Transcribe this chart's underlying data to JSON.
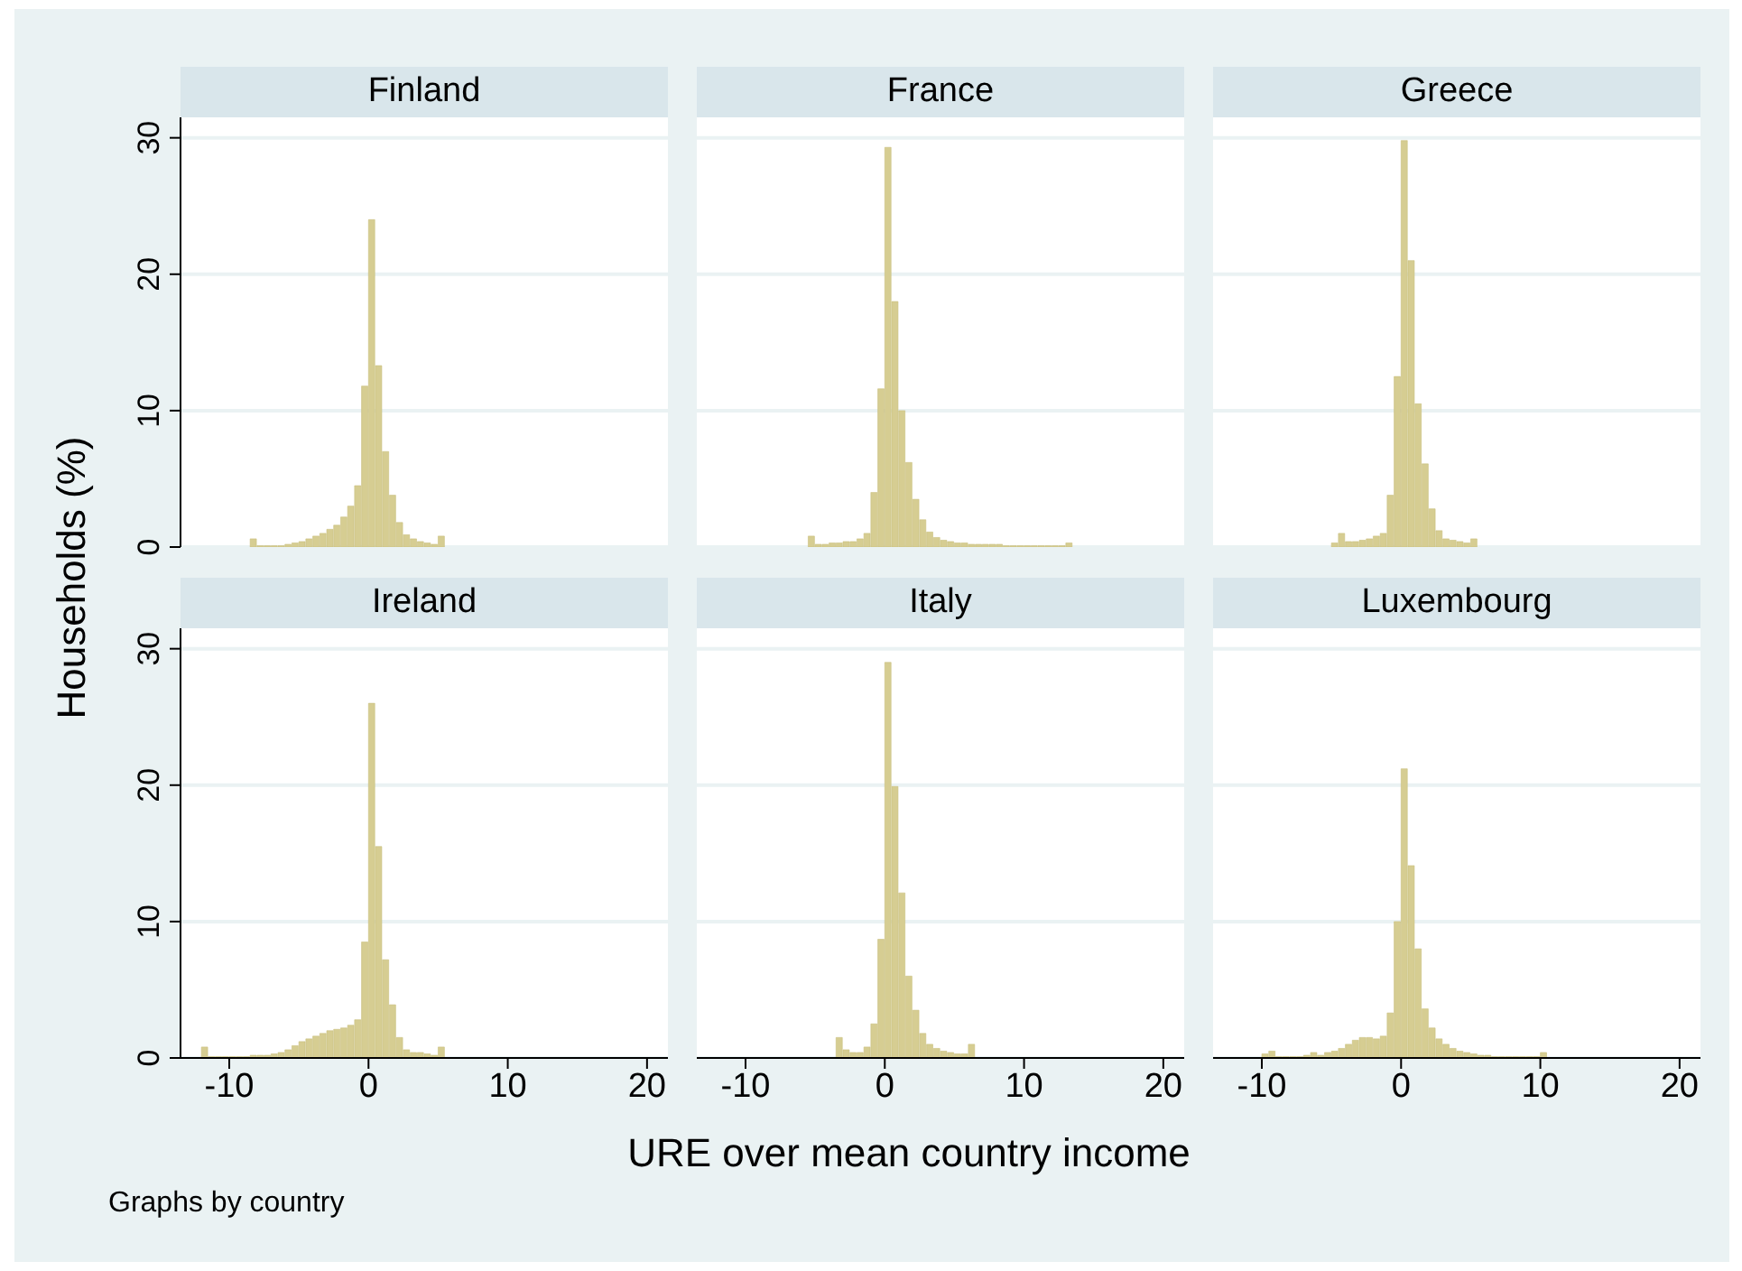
{
  "chart_data": [
    {
      "type": "histogram",
      "title": "Finland",
      "ylabel": "Households (%)",
      "color": "#d6cd92",
      "xlim": [
        -13.5,
        21.5
      ],
      "xticks": [
        -10,
        0,
        10,
        20
      ],
      "ylim": [
        0,
        31.5
      ],
      "yticks": [
        0,
        10,
        20,
        30
      ],
      "grid": "y",
      "tick_labels": "y",
      "bins": [
        -8.5,
        -8,
        -7.5,
        -7,
        -6.5,
        -6,
        -5.5,
        -5,
        -4.5,
        -4,
        -3.5,
        -3,
        -2.5,
        -2,
        -1.5,
        -1,
        -0.5,
        0,
        0.5,
        1,
        1.5,
        2,
        2.5,
        3,
        3.5,
        4,
        4.5,
        5,
        5.5
      ],
      "values": [
        0.6,
        0.1,
        0.1,
        0.1,
        0.1,
        0.2,
        0.3,
        0.4,
        0.6,
        0.8,
        1.0,
        1.3,
        1.6,
        2.2,
        3.0,
        4.5,
        11.8,
        24,
        13.3,
        7.0,
        3.8,
        1.8,
        0.9,
        0.6,
        0.4,
        0.3,
        0.2,
        0.8
      ]
    },
    {
      "type": "histogram",
      "title": "France",
      "color": "#d6cd92",
      "xlim": [
        -13.5,
        21.5
      ],
      "xticks": [
        -10,
        0,
        10,
        20
      ],
      "ylim": [
        0,
        31.5
      ],
      "yticks": [
        0,
        10,
        20,
        30
      ],
      "grid": "y",
      "tick_labels": false,
      "bins": [
        -5.5,
        -5,
        -4.5,
        -4,
        -3.5,
        -3,
        -2.5,
        -2,
        -1.5,
        -1,
        -0.5,
        0,
        0.5,
        1,
        1.5,
        2,
        2.5,
        3,
        3.5,
        4,
        4.5,
        5,
        5.5,
        6,
        6.5,
        7,
        7.5,
        8,
        8.5,
        9,
        9.5,
        10,
        10.5,
        11,
        11.5,
        12,
        12.5,
        13,
        13.5
      ],
      "values": [
        0.8,
        0.2,
        0.2,
        0.3,
        0.3,
        0.4,
        0.4,
        0.6,
        1.0,
        4.0,
        11.6,
        29.3,
        18,
        10,
        6.2,
        3.5,
        2.0,
        1.1,
        0.7,
        0.5,
        0.4,
        0.3,
        0.3,
        0.2,
        0.2,
        0.2,
        0.2,
        0.2,
        0.1,
        0.1,
        0.1,
        0.1,
        0.1,
        0.1,
        0.1,
        0.1,
        0.1,
        0.3
      ]
    },
    {
      "type": "histogram",
      "title": "Greece",
      "color": "#d6cd92",
      "xlim": [
        -13.5,
        21.5
      ],
      "xticks": [
        -10,
        0,
        10,
        20
      ],
      "ylim": [
        0,
        31.5
      ],
      "yticks": [
        0,
        10,
        20,
        30
      ],
      "grid": "y",
      "tick_labels": false,
      "bins": [
        -5,
        -4.5,
        -4,
        -3.5,
        -3,
        -2.5,
        -2,
        -1.5,
        -1,
        -0.5,
        0,
        0.5,
        1,
        1.5,
        2,
        2.5,
        3,
        3.5,
        4,
        4.5,
        5,
        5.5
      ],
      "values": [
        0.3,
        1.0,
        0.4,
        0.4,
        0.5,
        0.6,
        0.8,
        1.0,
        3.8,
        12.5,
        29.8,
        21,
        10.5,
        6.1,
        2.8,
        1.2,
        0.6,
        0.5,
        0.4,
        0.3,
        0.6
      ]
    },
    {
      "type": "histogram",
      "title": "Ireland",
      "annotations": [
        "Graphs by country"
      ],
      "color": "#d6cd92",
      "xlim": [
        -13.5,
        21.5
      ],
      "xticks": [
        -10,
        0,
        10,
        20
      ],
      "ylim": [
        0,
        31.5
      ],
      "yticks": [
        0,
        10,
        20,
        30
      ],
      "grid": "y",
      "bins": [
        -12,
        -11.5,
        -11,
        -10.5,
        -10,
        -9.5,
        -9,
        -8.5,
        -8,
        -7.5,
        -7,
        -6.5,
        -6,
        -5.5,
        -5,
        -4.5,
        -4,
        -3.5,
        -3,
        -2.5,
        -2,
        -1.5,
        -1,
        -0.5,
        0,
        0.5,
        1,
        1.5,
        2,
        2.5,
        3,
        3.5,
        4,
        4.5,
        5,
        5.5
      ],
      "values": [
        0.8,
        0.1,
        0.1,
        0.1,
        0.1,
        0.1,
        0.1,
        0.2,
        0.2,
        0.2,
        0.3,
        0.4,
        0.6,
        0.9,
        1.2,
        1.4,
        1.6,
        1.8,
        2.0,
        2.1,
        2.2,
        2.4,
        2.8,
        8.5,
        26,
        15.5,
        7.2,
        3.9,
        1.5,
        0.6,
        0.4,
        0.4,
        0.3,
        0.2,
        0.8
      ]
    },
    {
      "type": "histogram",
      "title": "Italy",
      "xlabel": "URE over mean country income",
      "color": "#d6cd92",
      "xlim": [
        -13.5,
        21.5
      ],
      "xticks": [
        -10,
        0,
        10,
        20
      ],
      "ylim": [
        0,
        31.5
      ],
      "yticks": [
        0,
        10,
        20,
        30
      ],
      "grid": "y",
      "tick_labels": "x",
      "bins": [
        -3.5,
        -3,
        -2.5,
        -2,
        -1.5,
        -1,
        -0.5,
        0,
        0.5,
        1,
        1.5,
        2,
        2.5,
        3,
        3.5,
        4,
        4.5,
        5,
        5.5,
        6,
        6.5
      ],
      "values": [
        1.5,
        0.6,
        0.4,
        0.4,
        0.8,
        2.5,
        8.7,
        29,
        19.9,
        12.1,
        6.0,
        3.5,
        1.8,
        1.0,
        0.7,
        0.5,
        0.4,
        0.3,
        0.3,
        1.0
      ]
    },
    {
      "type": "histogram",
      "title": "Luxembourg",
      "color": "#d6cd92",
      "xlim": [
        -13.5,
        21.5
      ],
      "xticks": [
        -10,
        0,
        10,
        20
      ],
      "ylim": [
        0,
        31.5
      ],
      "yticks": [
        0,
        10,
        20,
        30
      ],
      "grid": "y",
      "tick_labels": "x",
      "bins": [
        -10,
        -9.5,
        -9,
        -8.5,
        -8,
        -7.5,
        -7,
        -6.5,
        -6,
        -5.5,
        -5,
        -4.5,
        -4,
        -3.5,
        -3,
        -2.5,
        -2,
        -1.5,
        -1,
        -0.5,
        0,
        0.5,
        1,
        1.5,
        2,
        2.5,
        3,
        3.5,
        4,
        4.5,
        5,
        5.5,
        6,
        6.5,
        7,
        7.5,
        8,
        8.5,
        9,
        9.5,
        10,
        10.5
      ],
      "values": [
        0.3,
        0.5,
        0.1,
        0.1,
        0.1,
        0.1,
        0.2,
        0.4,
        0.2,
        0.4,
        0.5,
        0.7,
        1.0,
        1.3,
        1.5,
        1.5,
        1.4,
        1.6,
        3.3,
        10,
        21.2,
        14.1,
        8,
        3.6,
        2.2,
        1.4,
        1.0,
        0.7,
        0.5,
        0.4,
        0.3,
        0.2,
        0.2,
        0.1,
        0.1,
        0.1,
        0.1,
        0.1,
        0.1,
        0.1,
        0.4
      ]
    }
  ]
}
